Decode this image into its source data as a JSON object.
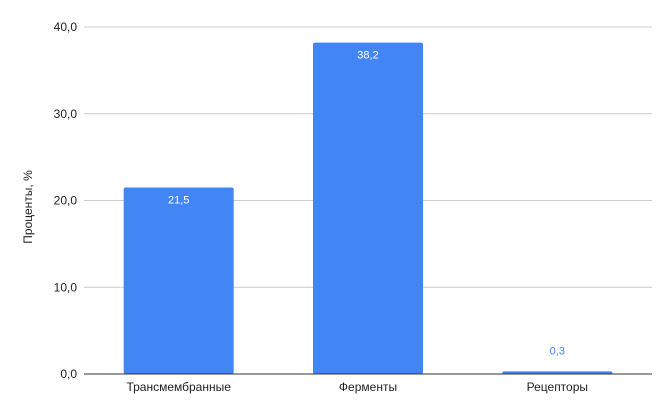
{
  "chart_data": {
    "type": "bar",
    "categories": [
      "Трансмембранные",
      "Ферменты",
      "Рецепторы"
    ],
    "values": [
      21.5,
      38.2,
      0.3
    ],
    "value_labels": [
      "21,5",
      "38,2",
      "0,3"
    ],
    "title": "",
    "xlabel": "",
    "ylabel": "Проценты, %",
    "ylim": [
      0,
      40
    ],
    "yticks": [
      0,
      10,
      20,
      30,
      40
    ],
    "ytick_labels": [
      "0,0",
      "10,0",
      "20,0",
      "30,0",
      "40,0"
    ],
    "grid": true,
    "legend": "none",
    "colors": {
      "bar": "#4285f4",
      "label_inside": "#ffffff",
      "label_outside": "#4285f4",
      "grid": "#cccccc",
      "axis": "#333333"
    }
  }
}
